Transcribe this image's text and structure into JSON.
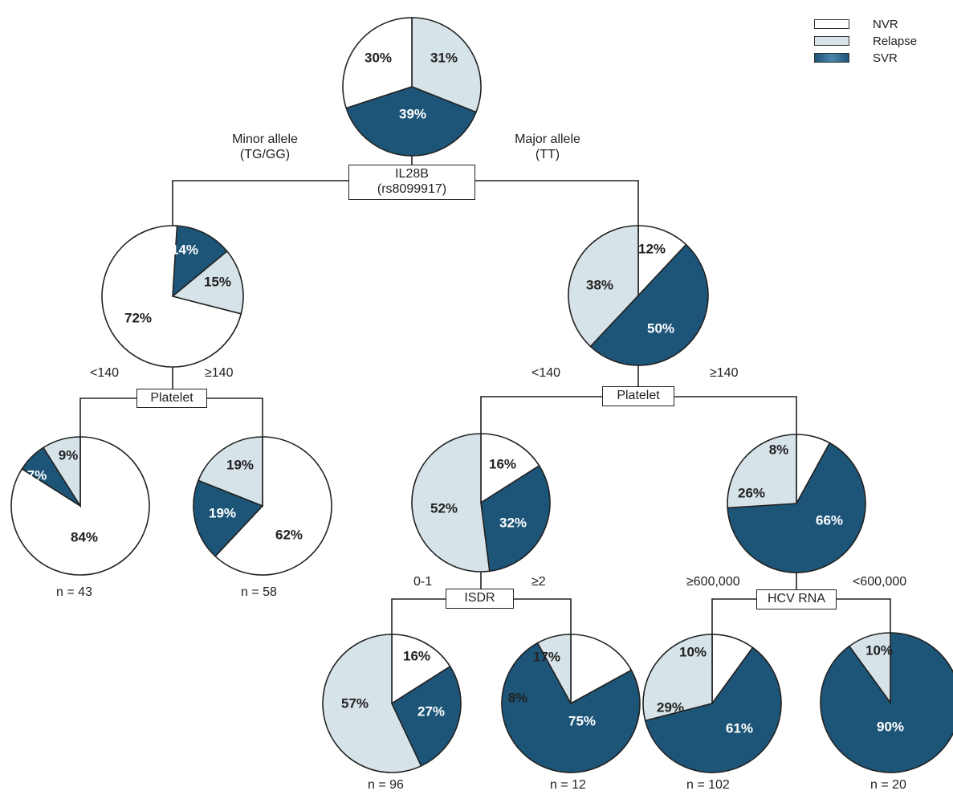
{
  "colors": {
    "nvr": "#ffffff",
    "relapse": "#d6e3e8",
    "svr": "#1d5578",
    "stroke": "#222222",
    "text_dark": "#222222",
    "text_light": "#ffffff"
  },
  "legend": [
    {
      "key": "nvr",
      "label": "NVR"
    },
    {
      "key": "relapse",
      "label": "Relapse"
    },
    {
      "key": "svr",
      "label": "SVR"
    }
  ],
  "nodes": {
    "root": {
      "nvr": "30%",
      "relapse": "31%",
      "svr": "39%"
    },
    "minor": {
      "nvr": "72%",
      "relapse": "15%",
      "svr": "14%"
    },
    "major": {
      "nvr": "12%",
      "relapse": "38%",
      "svr": "50%"
    },
    "minor_low": {
      "nvr": "84%",
      "relapse": "9%",
      "svr": "7%",
      "n": "n = 43"
    },
    "minor_high": {
      "nvr": "62%",
      "relapse": "19%",
      "svr": "19%",
      "n": "n = 58"
    },
    "major_low": {
      "nvr": "16%",
      "relapse": "52%",
      "svr": "32%"
    },
    "major_high": {
      "nvr": "8%",
      "relapse": "26%",
      "svr": "66%"
    },
    "isdr_low": {
      "nvr": "16%",
      "relapse": "57%",
      "svr": "27%",
      "n": "n = 96"
    },
    "isdr_high": {
      "nvr": "17%",
      "relapse": "8%",
      "svr": "75%",
      "n": "n = 12"
    },
    "hcv_high": {
      "nvr": "10%",
      "relapse": "29%",
      "svr": "61%",
      "n": "n = 102"
    },
    "hcv_low": {
      "nvr": "0%",
      "relapse": "10%",
      "svr": "90%",
      "n": "n = 20"
    }
  },
  "splits": {
    "il28b": {
      "line1": "IL28B",
      "line2": "(rs8099917)",
      "left": "Minor allele\n(TG/GG)",
      "right": "Major allele\n(TT)"
    },
    "platelet_minor": {
      "label": "Platelet",
      "left": "<140",
      "right": "≥140"
    },
    "platelet_major": {
      "label": "Platelet",
      "left": "<140",
      "right": "≥140"
    },
    "isdr": {
      "label": "ISDR",
      "left": "0-1",
      "right": "≥2"
    },
    "hcv": {
      "label": "HCV RNA",
      "left": "≥600,000",
      "right": "<600,000"
    }
  }
}
